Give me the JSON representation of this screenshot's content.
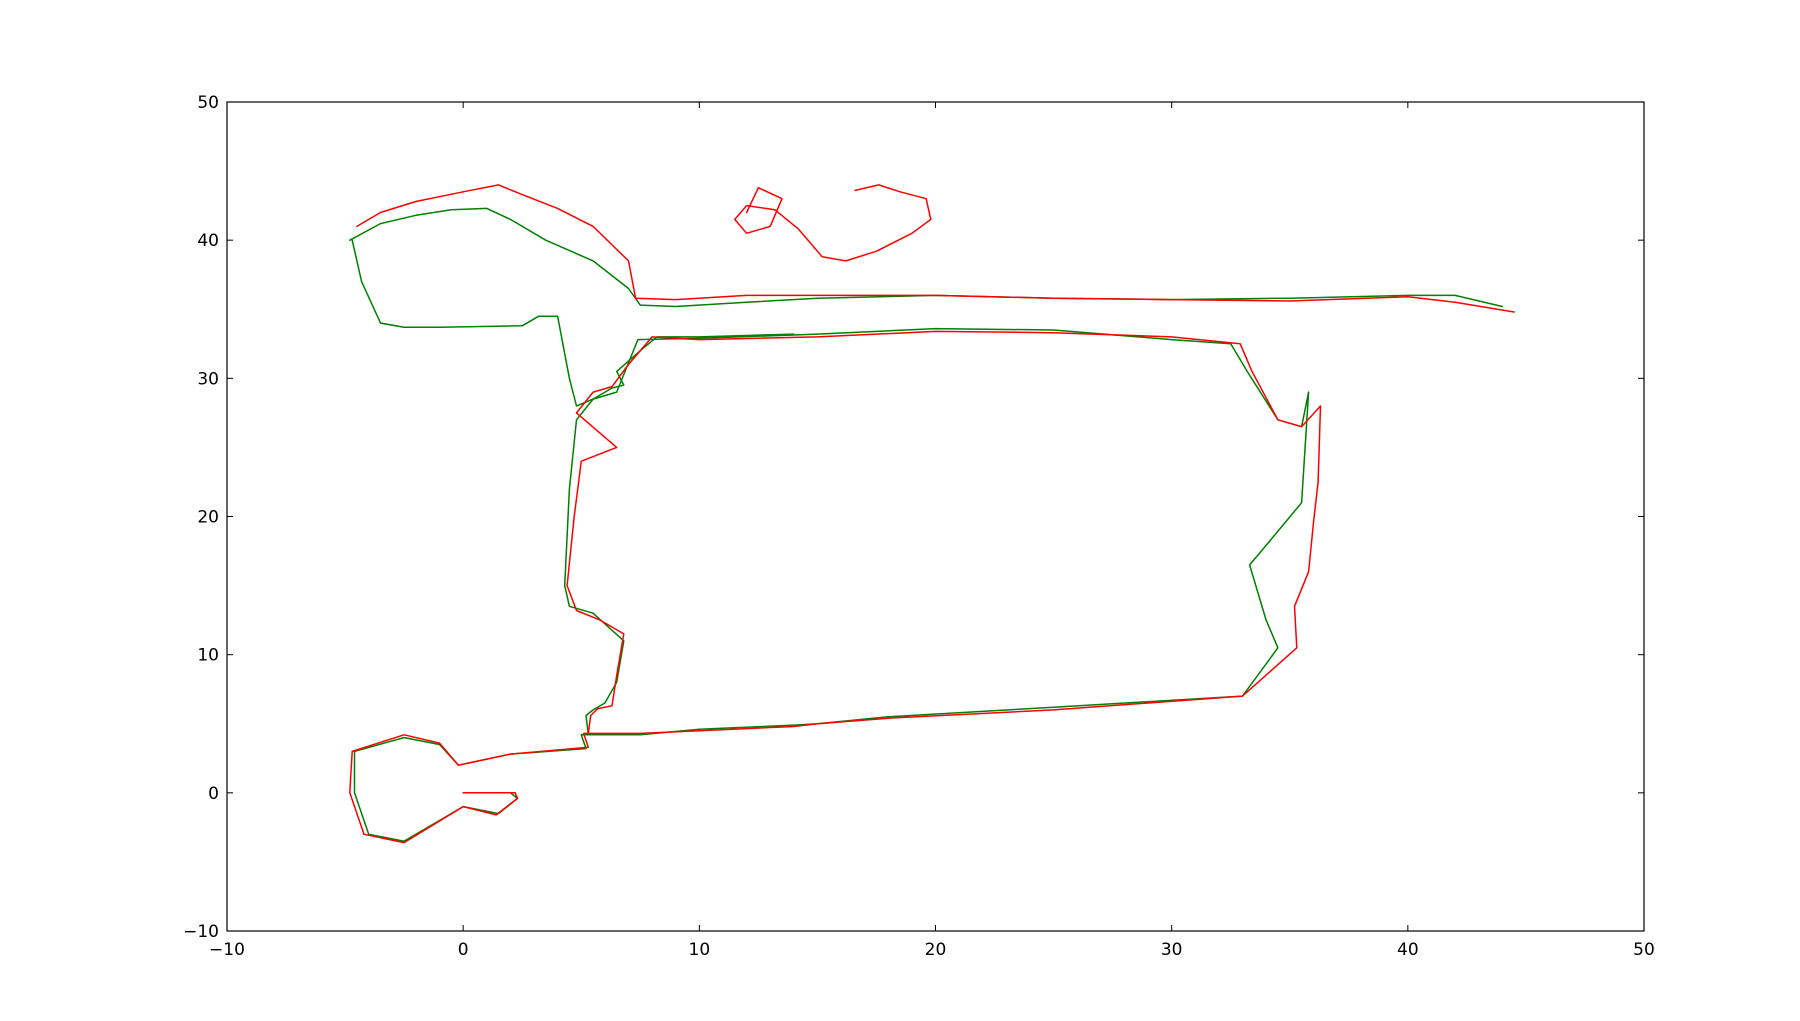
{
  "chart_data": {
    "type": "line",
    "title": "",
    "xlabel": "",
    "ylabel": "",
    "xlim": [
      -10,
      50
    ],
    "ylim": [
      -10,
      50
    ],
    "xticks": [
      -10,
      0,
      10,
      20,
      30,
      40,
      50
    ],
    "yticks": [
      -10,
      0,
      10,
      20,
      30,
      40,
      50
    ],
    "xtick_labels": [
      "−10",
      "0",
      "10",
      "20",
      "30",
      "40",
      "50"
    ],
    "ytick_labels": [
      "−10",
      "0",
      "10",
      "20",
      "30",
      "40",
      "50"
    ],
    "grid": false,
    "legend": "none",
    "series": [
      {
        "color": "#008000",
        "points": [
          [
            0,
            0
          ],
          [
            2,
            0
          ],
          [
            2.3,
            -0.4
          ],
          [
            1.5,
            -1.5
          ],
          [
            0,
            -1
          ],
          [
            -2.5,
            -3.5
          ],
          [
            -4,
            -3
          ],
          [
            -4.6,
            0
          ],
          [
            -4.6,
            3
          ],
          [
            -2.5,
            4
          ],
          [
            -1,
            3.5
          ],
          [
            -0.2,
            2
          ],
          [
            2,
            2.8
          ],
          [
            5.2,
            3.2
          ],
          [
            5,
            4.2
          ],
          [
            7.5,
            4.2
          ],
          [
            10,
            4.6
          ],
          [
            14,
            4.9
          ],
          [
            15,
            5
          ],
          [
            18,
            5.5
          ],
          [
            25,
            6.2
          ],
          [
            33,
            7
          ],
          [
            34.5,
            10.5
          ],
          [
            34,
            12.5
          ],
          [
            33.3,
            16.5
          ],
          [
            33.8,
            17.5
          ],
          [
            35.5,
            21
          ],
          [
            35.8,
            29
          ],
          [
            35.8,
            29
          ],
          [
            35.5,
            26.5
          ],
          [
            34.5,
            27
          ],
          [
            33.2,
            30.5
          ],
          [
            32.5,
            32.5
          ],
          [
            30,
            32.8
          ],
          [
            25,
            33.5
          ],
          [
            20,
            33.6
          ],
          [
            15,
            33.2
          ],
          [
            10,
            32.9
          ],
          [
            7.4,
            32.8
          ],
          [
            6.5,
            29
          ],
          [
            5.5,
            28.5
          ],
          [
            4.8,
            27
          ],
          [
            4.5,
            22
          ],
          [
            4.3,
            15
          ],
          [
            4.5,
            13.5
          ],
          [
            5.5,
            13
          ],
          [
            6.8,
            11
          ],
          [
            6.5,
            8
          ],
          [
            6,
            6.5
          ],
          [
            5.5,
            6
          ],
          [
            5.2,
            5.6
          ],
          [
            5.3,
            4.2
          ]
        ],
        "points_2": [
          [
            -4.7,
            40
          ],
          [
            -4.3,
            37
          ],
          [
            -3.5,
            34
          ],
          [
            -2.5,
            33.7
          ],
          [
            -1,
            33.7
          ],
          [
            2.5,
            33.8
          ],
          [
            3.2,
            34.5
          ],
          [
            4,
            34.5
          ],
          [
            4.5,
            30
          ],
          [
            4.8,
            28
          ],
          [
            5.5,
            28.5
          ],
          [
            6.3,
            29.3
          ],
          [
            6.8,
            29.5
          ],
          [
            6.5,
            30.5
          ],
          [
            7.5,
            32
          ],
          [
            8.2,
            33
          ],
          [
            10,
            33
          ],
          [
            14,
            33.2
          ]
        ],
        "points_3": [
          [
            -4.8,
            40
          ],
          [
            -3.5,
            41.2
          ],
          [
            -2,
            41.8
          ],
          [
            -0.5,
            42.2
          ],
          [
            1,
            42.3
          ],
          [
            2,
            41.5
          ],
          [
            3.5,
            40
          ],
          [
            5.5,
            38.5
          ],
          [
            7,
            36.5
          ],
          [
            7.5,
            35.3
          ],
          [
            9,
            35.2
          ],
          [
            12,
            35.5
          ],
          [
            15,
            35.8
          ],
          [
            20,
            36
          ],
          [
            25,
            35.8
          ],
          [
            30,
            35.7
          ],
          [
            35,
            35.8
          ],
          [
            40,
            36
          ],
          [
            42,
            36
          ],
          [
            44,
            35.2
          ]
        ]
      },
      {
        "color": "#ff0000",
        "points": [
          [
            0,
            0
          ],
          [
            2.2,
            0
          ],
          [
            2.3,
            -0.4
          ],
          [
            1.4,
            -1.6
          ],
          [
            0,
            -1
          ],
          [
            -2.5,
            -3.6
          ],
          [
            -4.2,
            -3
          ],
          [
            -4.8,
            0
          ],
          [
            -4.7,
            3
          ],
          [
            -2.5,
            4.2
          ],
          [
            -1,
            3.6
          ],
          [
            -0.2,
            2
          ],
          [
            2,
            2.8
          ],
          [
            5.3,
            3.3
          ],
          [
            5.1,
            4.3
          ],
          [
            7.5,
            4.3
          ],
          [
            10,
            4.5
          ],
          [
            14,
            4.8
          ],
          [
            15,
            5
          ],
          [
            18,
            5.4
          ],
          [
            25,
            6
          ],
          [
            33,
            7
          ],
          [
            35.3,
            10.5
          ],
          [
            35.2,
            13.5
          ],
          [
            35.8,
            16
          ],
          [
            36,
            19.5
          ],
          [
            36.2,
            22.5
          ],
          [
            36.3,
            28
          ],
          [
            36.3,
            28
          ],
          [
            35.5,
            26.5
          ],
          [
            34.5,
            27
          ],
          [
            33.4,
            30.5
          ],
          [
            32.9,
            32.5
          ],
          [
            30,
            33
          ],
          [
            25,
            33.3
          ],
          [
            20,
            33.4
          ],
          [
            15,
            33
          ],
          [
            10,
            32.8
          ],
          [
            8,
            33
          ],
          [
            7,
            31
          ],
          [
            6.3,
            29.4
          ],
          [
            5.5,
            29
          ],
          [
            4.8,
            27.5
          ],
          [
            6.5,
            25
          ],
          [
            5,
            24
          ],
          [
            4.7,
            20
          ],
          [
            4.4,
            15
          ],
          [
            4.8,
            13.2
          ],
          [
            5.8,
            12.5
          ],
          [
            6.8,
            11.5
          ],
          [
            6.5,
            8.5
          ],
          [
            6.3,
            6.3
          ],
          [
            5.7,
            6.1
          ],
          [
            5.4,
            5.6
          ],
          [
            5.3,
            4.3
          ]
        ],
        "points_2": [
          [
            -4.5,
            41
          ],
          [
            -3.5,
            42
          ],
          [
            -2,
            42.8
          ],
          [
            0,
            43.5
          ],
          [
            1.5,
            44
          ],
          [
            2.5,
            43.3
          ],
          [
            4,
            42.3
          ],
          [
            5.5,
            41
          ],
          [
            7,
            38.5
          ],
          [
            7.3,
            35.8
          ],
          [
            9,
            35.7
          ],
          [
            12,
            36
          ],
          [
            15,
            36
          ],
          [
            20,
            36
          ],
          [
            25,
            35.8
          ],
          [
            30,
            35.7
          ],
          [
            35,
            35.6
          ],
          [
            40,
            35.9
          ],
          [
            42,
            35.5
          ],
          [
            44.5,
            34.8
          ]
        ],
        "points_3": [
          [
            12,
            42
          ],
          [
            12.5,
            43.8
          ],
          [
            13.5,
            43
          ],
          [
            13,
            41
          ],
          [
            12,
            40.5
          ],
          [
            11.5,
            41.5
          ],
          [
            12,
            42.5
          ],
          [
            13.2,
            42.2
          ],
          [
            14.2,
            40.8
          ],
          [
            15.2,
            38.8
          ],
          [
            16.2,
            38.5
          ],
          [
            17.5,
            39.2
          ],
          [
            19,
            40.5
          ],
          [
            19.8,
            41.5
          ],
          [
            19.6,
            43
          ],
          [
            18.5,
            43.5
          ],
          [
            17.6,
            44
          ],
          [
            16.6,
            43.6
          ]
        ]
      }
    ]
  }
}
